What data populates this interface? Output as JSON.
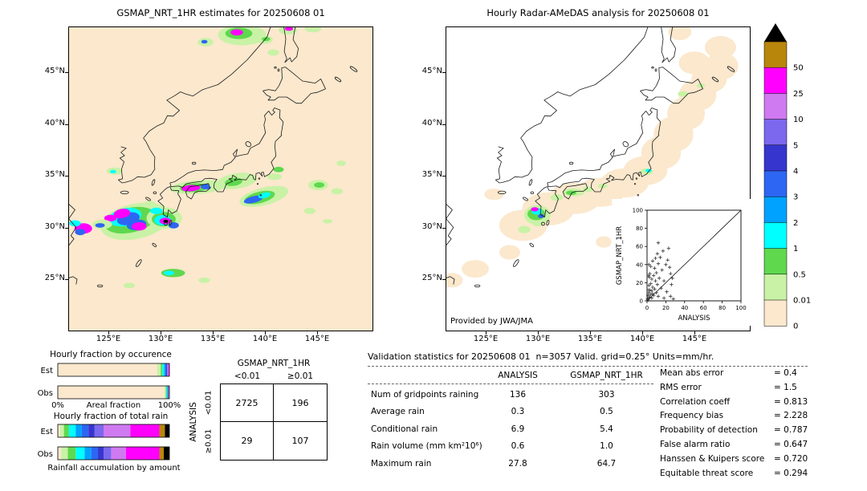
{
  "palette": {
    "P": "#fbe8cd",
    "LG": "#c9f2a6",
    "G": "#5fd84e",
    "C": "#00ffff",
    "SB": "#00a2ff",
    "B": "#2d66f2",
    "DB": "#3636cf",
    "SL": "#7b68ee",
    "O": "#cf7af0",
    "M": "#ff00ff",
    "GD": "#b8860b",
    "K": "#000000"
  },
  "left_map": {
    "title": "GSMAP_NRT_1HR estimates for 20250608 01",
    "background": "#fbe8cd",
    "lat_ticks": [
      {
        "label": "45°N",
        "lat": 45
      },
      {
        "label": "40°N",
        "lat": 40
      },
      {
        "label": "35°N",
        "lat": 35
      },
      {
        "label": "30°N",
        "lat": 30
      },
      {
        "label": "25°N",
        "lat": 25
      }
    ],
    "lon_ticks": [
      {
        "label": "125°E",
        "lon": 125
      },
      {
        "label": "130°E",
        "lon": 130
      },
      {
        "label": "135°E",
        "lon": 135
      },
      {
        "label": "140°E",
        "lon": 140
      },
      {
        "label": "145°E",
        "lon": 145
      }
    ],
    "blobs": [
      [
        137.8,
        48.6,
        2.3,
        1.0,
        "LG"
      ],
      [
        137.5,
        48.75,
        1.3,
        0.55,
        "G"
      ],
      [
        137.3,
        48.85,
        0.6,
        0.3,
        "M"
      ],
      [
        139.9,
        48.15,
        0.85,
        0.4,
        "LG"
      ],
      [
        140.1,
        48.2,
        0.4,
        0.2,
        "G"
      ],
      [
        142.2,
        49.1,
        0.9,
        0.45,
        "LG"
      ],
      [
        142.3,
        49.2,
        0.4,
        0.2,
        "M"
      ],
      [
        134.3,
        47.9,
        0.75,
        0.4,
        "LG"
      ],
      [
        134.2,
        47.95,
        0.3,
        0.18,
        "B"
      ],
      [
        140.8,
        46.9,
        0.55,
        0.3,
        "LG"
      ],
      [
        144.6,
        49.2,
        0.8,
        0.35,
        "LG"
      ],
      [
        125.6,
        35.45,
        0.75,
        0.35,
        "LG"
      ],
      [
        125.45,
        35.4,
        0.3,
        0.16,
        "C"
      ],
      [
        127.6,
        30.6,
        3.4,
        1.7,
        "LG",
        -12
      ],
      [
        127.1,
        30.7,
        2.5,
        1.2,
        "G",
        -12
      ],
      [
        126.6,
        31.0,
        1.6,
        0.85,
        "C",
        -12
      ],
      [
        126.9,
        30.85,
        1.1,
        0.6,
        "B",
        -12
      ],
      [
        127.7,
        30.25,
        0.95,
        0.5,
        "B",
        -8
      ],
      [
        126.3,
        31.35,
        0.8,
        0.45,
        "M",
        -10
      ],
      [
        127.95,
        30.1,
        0.7,
        0.4,
        "M"
      ],
      [
        125.2,
        30.9,
        0.6,
        0.32,
        "M"
      ],
      [
        124.4,
        30.3,
        0.95,
        0.45,
        "LG"
      ],
      [
        124.2,
        30.2,
        0.45,
        0.22,
        "B"
      ],
      [
        122.6,
        29.9,
        0.85,
        0.5,
        "M"
      ],
      [
        122.3,
        29.55,
        0.5,
        0.3,
        "B"
      ],
      [
        121.8,
        30.4,
        0.55,
        0.3,
        "C"
      ],
      [
        130.35,
        30.9,
        1.7,
        1.05,
        "LG"
      ],
      [
        130.3,
        30.8,
        1.15,
        0.7,
        "G"
      ],
      [
        130.2,
        30.7,
        0.8,
        0.5,
        "C"
      ],
      [
        130.45,
        30.62,
        0.55,
        0.32,
        "M"
      ],
      [
        130.5,
        30.6,
        0.24,
        0.15,
        "K"
      ],
      [
        131.25,
        30.2,
        0.5,
        0.3,
        "B"
      ],
      [
        129.6,
        31.6,
        0.6,
        0.32,
        "C"
      ],
      [
        129.0,
        32.3,
        0.55,
        0.26,
        "LG"
      ],
      [
        133.6,
        33.9,
        2.7,
        0.65,
        "LG",
        -4
      ],
      [
        133.2,
        33.85,
        1.35,
        0.42,
        "G",
        -4
      ],
      [
        132.9,
        33.8,
        0.9,
        0.3,
        "M",
        -4
      ],
      [
        134.35,
        33.95,
        0.5,
        0.26,
        "B"
      ],
      [
        135.2,
        34.1,
        0.6,
        0.26,
        "LG"
      ],
      [
        137.3,
        34.5,
        1.9,
        0.75,
        "LG",
        -8
      ],
      [
        137.0,
        34.4,
        0.85,
        0.38,
        "G",
        -8
      ],
      [
        139.9,
        33.0,
        2.4,
        0.85,
        "LG",
        -14
      ],
      [
        139.5,
        32.9,
        1.5,
        0.55,
        "G",
        -14
      ],
      [
        138.9,
        32.7,
        0.95,
        0.32,
        "B",
        -14
      ],
      [
        139.95,
        33.1,
        0.6,
        0.26,
        "C",
        -14
      ],
      [
        140.9,
        34.9,
        0.7,
        0.32,
        "LG"
      ],
      [
        141.3,
        35.6,
        0.5,
        0.26,
        "G"
      ],
      [
        145.1,
        34.1,
        0.95,
        0.5,
        "LG"
      ],
      [
        145.2,
        34.1,
        0.5,
        0.26,
        "G"
      ],
      [
        146.9,
        33.5,
        0.55,
        0.3,
        "LG"
      ],
      [
        144.3,
        31.6,
        0.55,
        0.3,
        "LG"
      ],
      [
        147.3,
        36.2,
        0.45,
        0.26,
        "LG"
      ],
      [
        146.0,
        30.6,
        0.45,
        0.22,
        "LG"
      ],
      [
        131.2,
        25.6,
        1.15,
        0.4,
        "G"
      ],
      [
        130.8,
        25.6,
        0.5,
        0.22,
        "C"
      ],
      [
        127.0,
        24.4,
        0.55,
        0.26,
        "LG"
      ],
      [
        134.2,
        24.9,
        0.55,
        0.26,
        "LG"
      ]
    ]
  },
  "right_map": {
    "title": "Hourly Radar-AMeDAS analysis for 20250608 01",
    "background": "#ffffff",
    "credit": "Provided by JWA/JMA",
    "lat_ticks": [
      {
        "label": "45°N",
        "lat": 45
      },
      {
        "label": "40°N",
        "lat": 40
      },
      {
        "label": "35°N",
        "lat": 35
      },
      {
        "label": "30°N",
        "lat": 30
      },
      {
        "label": "25°N",
        "lat": 25
      }
    ],
    "lon_ticks": [
      {
        "label": "125°E",
        "lon": 125
      },
      {
        "label": "130°E",
        "lon": 130
      },
      {
        "label": "135°E",
        "lon": 135
      },
      {
        "label": "140°E",
        "lon": 140
      },
      {
        "label": "145°E",
        "lon": 145
      }
    ],
    "blobs": [
      [
        128.6,
        30.2,
        2.3,
        1.5,
        "P"
      ],
      [
        131.0,
        31.8,
        2.5,
        1.6,
        "P"
      ],
      [
        133.5,
        32.8,
        2.5,
        1.5,
        "P"
      ],
      [
        136.0,
        33.4,
        2.3,
        1.4,
        "P"
      ],
      [
        138.3,
        34.3,
        2.3,
        1.4,
        "P"
      ],
      [
        140.3,
        35.5,
        2.1,
        1.4,
        "P"
      ],
      [
        141.8,
        37.2,
        1.9,
        1.6,
        "P"
      ],
      [
        143.0,
        39.0,
        1.9,
        1.7,
        "P"
      ],
      [
        144.2,
        41.0,
        1.8,
        1.6,
        "P"
      ],
      [
        145.3,
        42.8,
        1.8,
        1.5,
        "P"
      ],
      [
        146.4,
        44.3,
        1.7,
        1.3,
        "P"
      ],
      [
        147.6,
        45.6,
        1.6,
        1.3,
        "P"
      ],
      [
        145.0,
        45.9,
        1.5,
        1.1,
        "P"
      ],
      [
        147.5,
        47.4,
        1.5,
        1.1,
        "P"
      ],
      [
        143.6,
        48.9,
        1.1,
        0.8,
        "P"
      ],
      [
        124.0,
        26.0,
        1.3,
        0.85,
        "P"
      ],
      [
        127.3,
        27.6,
        1.0,
        0.7,
        "P"
      ],
      [
        121.8,
        24.9,
        1.0,
        0.7,
        "P"
      ],
      [
        125.8,
        33.2,
        0.95,
        0.55,
        "P"
      ],
      [
        136.3,
        28.6,
        0.75,
        0.55,
        "P"
      ],
      [
        129.95,
        31.2,
        1.25,
        0.95,
        "LG"
      ],
      [
        129.85,
        31.3,
        0.85,
        0.6,
        "G"
      ],
      [
        129.9,
        31.55,
        0.5,
        0.32,
        "C"
      ],
      [
        129.7,
        31.75,
        0.36,
        0.2,
        "M"
      ],
      [
        130.3,
        31.1,
        0.3,
        0.2,
        "B"
      ],
      [
        130.0,
        30.4,
        0.5,
        0.3,
        "LG"
      ],
      [
        128.7,
        29.8,
        0.6,
        0.36,
        "LG"
      ],
      [
        131.8,
        32.9,
        0.6,
        0.32,
        "LG"
      ],
      [
        133.4,
        33.4,
        1.05,
        0.38,
        "LG"
      ],
      [
        133.2,
        33.35,
        0.5,
        0.22,
        "G"
      ],
      [
        134.8,
        33.7,
        0.5,
        0.26,
        "LG"
      ],
      [
        136.2,
        34.0,
        0.45,
        0.24,
        "LG"
      ],
      [
        140.4,
        35.4,
        0.6,
        0.3,
        "LG"
      ],
      [
        140.6,
        35.5,
        0.3,
        0.16,
        "C"
      ],
      [
        143.9,
        42.9,
        0.5,
        0.26,
        "LG"
      ],
      [
        145.6,
        43.7,
        0.4,
        0.22,
        "LG"
      ]
    ]
  },
  "colorbar": {
    "levels": [
      {
        "label": "50",
        "color": "#b8860b"
      },
      {
        "label": "25",
        "color": "#ff00ff"
      },
      {
        "label": "10",
        "color": "#cf7af0"
      },
      {
        "label": "5",
        "color": "#7b68ee"
      },
      {
        "label": "4",
        "color": "#3636cf"
      },
      {
        "label": "3",
        "color": "#2d66f2"
      },
      {
        "label": "2",
        "color": "#00a2ff"
      },
      {
        "label": "1",
        "color": "#00ffff"
      },
      {
        "label": "0.5",
        "color": "#5fd84e"
      },
      {
        "label": "0.01",
        "color": "#c9f2a6"
      },
      {
        "label": "0",
        "color": "#fbe8cd"
      }
    ]
  },
  "chart_data": [
    {
      "type": "bar",
      "id": "occurrence",
      "title": "Hourly fraction by occurence",
      "xlabel": "Areal fraction",
      "x_tick_labels": [
        "0%",
        "100%"
      ],
      "xlim": [
        0,
        100
      ],
      "stacked": true,
      "colors": [
        "P",
        "LG",
        "G",
        "C",
        "SB",
        "B",
        "DB",
        "SL",
        "O",
        "M"
      ],
      "rows": [
        {
          "label": "Est",
          "values": [
            89.0,
            3.2,
            1.6,
            1.5,
            1.0,
            0.9,
            0.7,
            0.7,
            0.7,
            0.7
          ]
        },
        {
          "label": "Obs",
          "values": [
            95.5,
            1.3,
            0.7,
            0.6,
            0.45,
            0.35,
            0.3,
            0.3,
            0.25,
            0.25
          ]
        }
      ]
    },
    {
      "type": "bar",
      "id": "total_rain",
      "title": "Hourly fraction of total rain",
      "caption": "Rainfall accumulation by amount",
      "xlim": [
        0,
        100
      ],
      "stacked": true,
      "colors": [
        "P",
        "LG",
        "G",
        "C",
        "SB",
        "B",
        "DB",
        "SL",
        "O",
        "M",
        "GD",
        "K"
      ],
      "rows": [
        {
          "label": "Est",
          "values": [
            2,
            3.5,
            4.5,
            6,
            5.5,
            6,
            5.5,
            8,
            24,
            26,
            5,
            4
          ]
        },
        {
          "label": "Obs",
          "values": [
            3,
            6,
            7,
            8,
            6,
            6,
            5,
            7,
            13,
            30,
            4,
            5
          ]
        }
      ]
    },
    {
      "type": "table",
      "id": "contingency",
      "title": "GSMAP_NRT_1HR",
      "row_axis": "ANALYSIS",
      "col_labels": [
        "<0.01",
        "≥0.01"
      ],
      "row_labels": [
        "<0.01",
        "≥0.01"
      ],
      "cells": [
        [
          "2725",
          "196"
        ],
        [
          "29",
          "107"
        ]
      ]
    },
    {
      "type": "scatter",
      "id": "inset_scatter",
      "xlabel": "ANALYSIS",
      "ylabel": "GSMAP_NRT_1HR",
      "xlim": [
        0,
        100
      ],
      "ylim": [
        0,
        100
      ],
      "xticks": [
        0,
        20,
        40,
        60,
        80,
        100
      ],
      "yticks": [
        0,
        20,
        40,
        60,
        80,
        100
      ],
      "diagonal": true,
      "marker": "+",
      "points": [
        [
          0.5,
          2
        ],
        [
          1,
          1
        ],
        [
          1,
          6
        ],
        [
          1.5,
          12
        ],
        [
          2,
          3
        ],
        [
          2,
          9
        ],
        [
          2,
          17
        ],
        [
          2.5,
          26
        ],
        [
          3,
          4
        ],
        [
          3,
          12
        ],
        [
          3,
          30
        ],
        [
          4,
          7
        ],
        [
          4,
          19
        ],
        [
          4,
          38
        ],
        [
          5,
          3
        ],
        [
          5,
          11
        ],
        [
          5,
          24
        ],
        [
          6,
          15
        ],
        [
          6,
          44
        ],
        [
          7,
          6
        ],
        [
          7,
          28
        ],
        [
          8,
          13
        ],
        [
          8,
          36
        ],
        [
          9,
          22
        ],
        [
          9,
          47
        ],
        [
          10,
          9
        ],
        [
          10,
          31
        ],
        [
          11,
          18
        ],
        [
          11,
          52
        ],
        [
          12,
          5
        ],
        [
          12,
          41
        ],
        [
          12,
          64
        ],
        [
          13,
          25
        ],
        [
          14,
          48
        ],
        [
          15,
          14
        ],
        [
          16,
          34
        ],
        [
          17,
          55
        ],
        [
          18,
          22
        ],
        [
          18,
          3
        ],
        [
          20,
          40
        ],
        [
          21,
          10
        ],
        [
          22,
          45
        ],
        [
          23,
          58
        ],
        [
          24,
          37
        ],
        [
          25,
          30
        ],
        [
          25,
          5
        ],
        [
          26,
          18
        ],
        [
          27,
          25
        ],
        [
          28,
          2
        ],
        [
          2,
          40
        ],
        [
          1.5,
          28
        ],
        [
          6,
          8
        ]
      ]
    },
    {
      "type": "table",
      "id": "validation",
      "title": "Validation statistics for 20250608 01  n=3057 Valid. grid=0.25° Units=mm/hr.",
      "columns": [
        "ANALYSIS",
        "GSMAP_NRT_1HR"
      ],
      "rows": [
        {
          "label": "Num of gridpoints raining",
          "values": [
            "136",
            "303"
          ]
        },
        {
          "label": "Average rain",
          "values": [
            "0.3",
            "0.5"
          ]
        },
        {
          "label": "Conditional rain",
          "values": [
            "6.9",
            "5.4"
          ]
        },
        {
          "label": "Rain volume (mm km²10⁶)",
          "values": [
            "0.6",
            "1.0"
          ]
        },
        {
          "label": "Maximum rain",
          "values": [
            "27.8",
            "64.7"
          ]
        }
      ],
      "stats": [
        {
          "label": "Mean abs error",
          "value": "0.4"
        },
        {
          "label": "RMS error",
          "value": "1.5"
        },
        {
          "label": "Correlation coeff",
          "value": "0.813"
        },
        {
          "label": "Frequency bias",
          "value": "2.228"
        },
        {
          "label": "Probability of detection",
          "value": "0.787"
        },
        {
          "label": "False alarm ratio",
          "value": "0.647"
        },
        {
          "label": "Hanssen & Kuipers score",
          "value": "0.720"
        },
        {
          "label": "Equitable threat score",
          "value": "0.294"
        }
      ]
    }
  ]
}
